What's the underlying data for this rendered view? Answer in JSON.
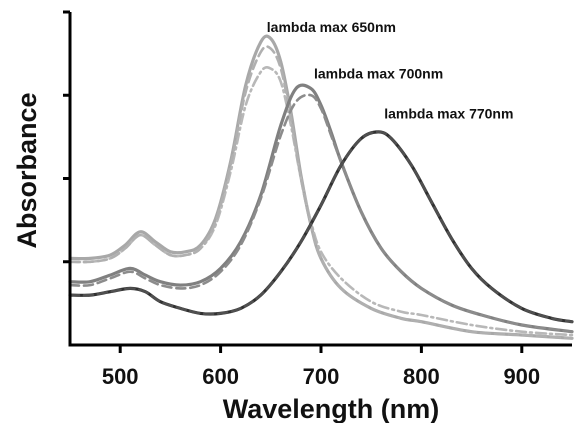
{
  "chart_data": {
    "type": "line",
    "title": "",
    "xlabel": "Wavelength (nm)",
    "ylabel": "Absorbance",
    "xlim": [
      450,
      950
    ],
    "ylim": [
      0,
      1.0
    ],
    "x_ticks": [
      500,
      600,
      700,
      800,
      900
    ],
    "y_ticks": [
      0.25,
      0.5,
      0.75,
      1.0
    ],
    "x_tick_labels": [
      "500",
      "600",
      "700",
      "800",
      "900"
    ],
    "grid": false,
    "legend": "none",
    "annotations": [
      {
        "text": "lambda max 650nm",
        "x": 646,
        "y": 0.94
      },
      {
        "text": "lambda max 700nm",
        "x": 693,
        "y": 0.8
      },
      {
        "text": "lambda max 770nm",
        "x": 763,
        "y": 0.68
      }
    ],
    "series": [
      {
        "color": "#a8a8a8",
        "style": "solid",
        "x": [
          450,
          470,
          490,
          505,
          520,
          535,
          550,
          565,
          580,
          595,
          610,
          625,
          640,
          650,
          660,
          670,
          680,
          690,
          700,
          720,
          750,
          780,
          800,
          850,
          900,
          950
        ],
        "y": [
          0.26,
          0.26,
          0.27,
          0.3,
          0.34,
          0.31,
          0.28,
          0.28,
          0.3,
          0.38,
          0.55,
          0.78,
          0.91,
          0.92,
          0.85,
          0.7,
          0.51,
          0.36,
          0.26,
          0.17,
          0.11,
          0.08,
          0.07,
          0.04,
          0.03,
          0.02
        ]
      },
      {
        "color": "#b8b8b8",
        "style": "dashdot",
        "x": [
          450,
          470,
          490,
          505,
          520,
          535,
          550,
          565,
          580,
          595,
          610,
          625,
          640,
          650,
          660,
          670,
          680,
          690,
          700,
          720,
          750,
          780,
          800,
          850,
          900,
          950
        ],
        "y": [
          0.25,
          0.25,
          0.26,
          0.29,
          0.33,
          0.3,
          0.27,
          0.27,
          0.29,
          0.36,
          0.52,
          0.72,
          0.82,
          0.83,
          0.79,
          0.66,
          0.5,
          0.37,
          0.28,
          0.2,
          0.13,
          0.1,
          0.09,
          0.06,
          0.04,
          0.03
        ]
      },
      {
        "color": "#b0b0b0",
        "style": "dash",
        "x": [
          450,
          470,
          490,
          505,
          520,
          535,
          550,
          565,
          580,
          595,
          610,
          625,
          640,
          650,
          660,
          670,
          680,
          690,
          700,
          720,
          750,
          780,
          800,
          850,
          900,
          950
        ],
        "y": [
          0.25,
          0.25,
          0.26,
          0.29,
          0.33,
          0.3,
          0.27,
          0.27,
          0.29,
          0.37,
          0.54,
          0.76,
          0.88,
          0.89,
          0.83,
          0.68,
          0.5,
          0.36,
          0.26,
          0.17,
          0.11,
          0.08,
          0.07,
          0.04,
          0.03,
          0.02
        ]
      },
      {
        "color": "#808080",
        "style": "solid",
        "x": [
          450,
          470,
          490,
          510,
          525,
          540,
          560,
          580,
          600,
          620,
          640,
          660,
          675,
          690,
          700,
          710,
          720,
          740,
          760,
          780,
          800,
          830,
          860,
          900,
          950
        ],
        "y": [
          0.19,
          0.19,
          0.21,
          0.23,
          0.21,
          0.19,
          0.18,
          0.19,
          0.23,
          0.31,
          0.45,
          0.66,
          0.77,
          0.77,
          0.72,
          0.64,
          0.55,
          0.4,
          0.29,
          0.22,
          0.17,
          0.12,
          0.09,
          0.06,
          0.04
        ]
      },
      {
        "color": "#8c8c8c",
        "style": "dash",
        "x": [
          450,
          470,
          490,
          510,
          525,
          540,
          560,
          580,
          600,
          620,
          640,
          660,
          675,
          690,
          700,
          710,
          720,
          740,
          760,
          780,
          800,
          830,
          860,
          900,
          950
        ],
        "y": [
          0.18,
          0.18,
          0.2,
          0.22,
          0.2,
          0.18,
          0.17,
          0.18,
          0.22,
          0.3,
          0.44,
          0.63,
          0.73,
          0.75,
          0.71,
          0.63,
          0.55,
          0.4,
          0.29,
          0.22,
          0.17,
          0.12,
          0.09,
          0.06,
          0.04
        ]
      },
      {
        "color": "#303030",
        "style": "solid",
        "x": [
          450,
          470,
          490,
          510,
          525,
          540,
          560,
          580,
          600,
          620,
          640,
          660,
          680,
          700,
          720,
          740,
          757,
          770,
          790,
          810,
          830,
          850,
          870,
          900,
          930,
          950
        ],
        "y": [
          0.15,
          0.15,
          0.16,
          0.17,
          0.16,
          0.13,
          0.11,
          0.095,
          0.095,
          0.11,
          0.15,
          0.22,
          0.31,
          0.42,
          0.54,
          0.62,
          0.64,
          0.62,
          0.54,
          0.43,
          0.32,
          0.23,
          0.17,
          0.11,
          0.08,
          0.07
        ]
      },
      {
        "color": "#505050",
        "style": "dash",
        "x": [
          450,
          470,
          490,
          510,
          525,
          540,
          560,
          580,
          600,
          620,
          640,
          660,
          680,
          700,
          720,
          740,
          757,
          770,
          790,
          810,
          830,
          850,
          870,
          900,
          930,
          950
        ],
        "y": [
          0.15,
          0.15,
          0.16,
          0.17,
          0.16,
          0.13,
          0.11,
          0.095,
          0.095,
          0.11,
          0.15,
          0.22,
          0.31,
          0.42,
          0.54,
          0.62,
          0.64,
          0.62,
          0.54,
          0.43,
          0.32,
          0.23,
          0.17,
          0.11,
          0.08,
          0.07
        ]
      }
    ]
  }
}
